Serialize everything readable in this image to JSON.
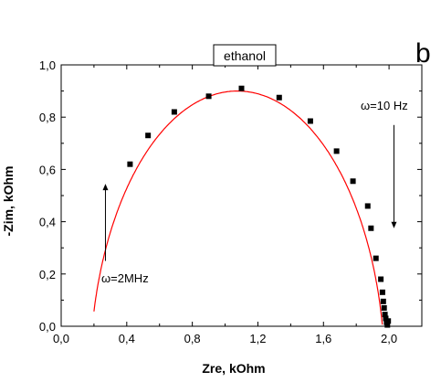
{
  "chart_data": {
    "type": "scatter",
    "title": "ethanol",
    "panel_label": "b",
    "xlabel": "Zre, kOhm",
    "ylabel": "-Zim, kOhm",
    "xlim": [
      0.0,
      2.2
    ],
    "ylim": [
      0.0,
      1.0
    ],
    "x_ticks": [
      "0,0",
      "0,4",
      "0,8",
      "1,2",
      "1,6",
      "2,0"
    ],
    "x_tick_values": [
      0.0,
      0.4,
      0.8,
      1.2,
      1.6,
      2.0
    ],
    "y_ticks": [
      "0,0",
      "0,2",
      "0,4",
      "0,6",
      "0,8",
      "1,0"
    ],
    "y_tick_values": [
      0.0,
      0.2,
      0.4,
      0.6,
      0.8,
      1.0
    ],
    "grid": false,
    "series": [
      {
        "marker": "square",
        "color": "#000000",
        "x": [
          0.42,
          0.53,
          0.69,
          0.9,
          1.1,
          1.33,
          1.52,
          1.68,
          1.78,
          1.87,
          1.89,
          1.92,
          1.95,
          1.96,
          1.965,
          1.97,
          1.975,
          1.98,
          1.985,
          1.99,
          1.995
        ],
        "y": [
          0.62,
          0.73,
          0.82,
          0.88,
          0.91,
          0.875,
          0.785,
          0.67,
          0.555,
          0.46,
          0.375,
          0.26,
          0.18,
          0.13,
          0.095,
          0.07,
          0.045,
          0.03,
          0.015,
          0.005,
          0.02
        ]
      },
      {
        "kind": "fit",
        "color": "#ff0000",
        "center": [
          1.075,
          -0.2
        ],
        "radii": [
          0.9,
          1.1
        ]
      }
    ],
    "annotations": [
      {
        "text": "ω=2MHz",
        "arrow_from": [
          0.27,
          0.25
        ],
        "arrow_to": [
          0.27,
          0.545
        ]
      },
      {
        "text": "ω=10 Hz",
        "arrow_from": [
          2.03,
          0.77
        ],
        "arrow_to": [
          2.03,
          0.375
        ]
      }
    ]
  }
}
